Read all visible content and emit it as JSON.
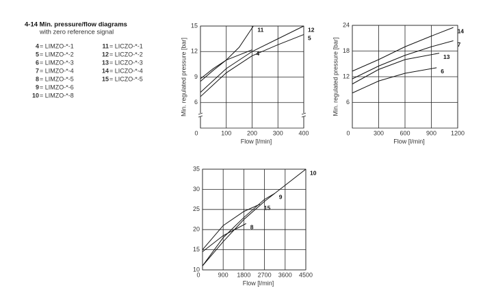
{
  "header": {
    "title": "4-14 Min. pressure/flow diagrams",
    "subtitle": "with zero reference signal"
  },
  "legend": {
    "left": [
      {
        "num": "4",
        "text": "= LIMZO-*-1"
      },
      {
        "num": "5",
        "text": "= LIMZO-*-2"
      },
      {
        "num": "6",
        "text": "= LIMZO-*-3"
      },
      {
        "num": "7",
        "text": "= LIMZO-*-4"
      },
      {
        "num": "8",
        "text": "= LIMZO-*-5"
      },
      {
        "num": "9",
        "text": "= LIMZO-*-6"
      },
      {
        "num": "10",
        "text": "= LIMZO-*-8"
      }
    ],
    "right": [
      {
        "num": "11",
        "text": "= LICZO-*-1"
      },
      {
        "num": "12",
        "text": "= LICZO-*-2"
      },
      {
        "num": "13",
        "text": "= LICZO-*-3"
      },
      {
        "num": "14",
        "text": "= LICZO-*-4"
      },
      {
        "num": "15",
        "text": "= LICZO-*-5"
      }
    ]
  },
  "chart_data": [
    {
      "type": "line",
      "xlabel": "Flow [l/min]",
      "ylabel": "Min. regulated pressure [bar]",
      "color": "#111111",
      "xlim": [
        0,
        400
      ],
      "xticks": [
        0,
        100,
        200,
        300,
        400
      ],
      "ylim": [
        3,
        15
      ],
      "yticks": [
        6,
        9,
        12,
        15
      ],
      "grid": true,
      "y_axis_break": true,
      "series": [
        {
          "name": "11",
          "x": [
            0,
            50,
            100,
            150,
            205
          ],
          "values": [
            8.5,
            9.8,
            11,
            12.5,
            15
          ]
        },
        {
          "name": "4",
          "x": [
            0,
            50,
            100,
            150,
            200
          ],
          "values": [
            8.8,
            10,
            11,
            11.6,
            12.2
          ]
        },
        {
          "name": "12",
          "x": [
            0,
            100,
            200,
            300,
            400
          ],
          "values": [
            7.2,
            10,
            12,
            13.5,
            15
          ]
        },
        {
          "name": "5",
          "x": [
            0,
            100,
            200,
            300,
            400
          ],
          "values": [
            6.7,
            9.5,
            11.5,
            12.8,
            14
          ]
        }
      ]
    },
    {
      "type": "line",
      "xlabel": "Flow [l/min]",
      "ylabel": "Min. regulated pressure [bar]",
      "color": "#111111",
      "xlim": [
        0,
        1200
      ],
      "xticks": [
        0,
        300,
        600,
        900,
        1200
      ],
      "ylim": [
        0,
        24
      ],
      "yticks": [
        6,
        12,
        18,
        24
      ],
      "grid": true,
      "y_axis_break": false,
      "series": [
        {
          "name": "14",
          "x": [
            0,
            300,
            600,
            900,
            1150
          ],
          "values": [
            13.3,
            16,
            19,
            21.5,
            23.5
          ]
        },
        {
          "name": "7",
          "x": [
            0,
            300,
            600,
            900,
            1150
          ],
          "values": [
            11.5,
            14.5,
            17,
            19,
            20.4
          ]
        },
        {
          "name": "13",
          "x": [
            0,
            300,
            600,
            990
          ],
          "values": [
            10.3,
            13.7,
            16,
            17.5
          ]
        },
        {
          "name": "6",
          "x": [
            0,
            300,
            600,
            960
          ],
          "values": [
            8.2,
            11,
            12.8,
            14.1
          ]
        }
      ]
    },
    {
      "type": "line",
      "xlabel": "Flow [l/min]",
      "color": "#111111",
      "xlim": [
        0,
        4500
      ],
      "xticks": [
        0,
        900,
        1800,
        2700,
        3600,
        4500
      ],
      "ylim": [
        10,
        35
      ],
      "yticks": [
        10,
        15,
        20,
        25,
        30,
        35
      ],
      "grid": true,
      "y_axis_break": false,
      "series": [
        {
          "name": "10",
          "x": [
            0,
            900,
            1800,
            2700,
            3600,
            4500
          ],
          "values": [
            11,
            17,
            22.5,
            27,
            31,
            35
          ]
        },
        {
          "name": "9",
          "x": [
            0,
            900,
            1800,
            2700,
            3150
          ],
          "values": [
            11,
            18,
            23,
            27.5,
            29
          ]
        },
        {
          "name": "15",
          "x": [
            0,
            900,
            1800,
            2500
          ],
          "values": [
            15,
            21,
            24.5,
            26.3
          ]
        },
        {
          "name": "8",
          "x": [
            0,
            900,
            1900
          ],
          "values": [
            14.5,
            18.5,
            21.5
          ]
        }
      ]
    }
  ]
}
